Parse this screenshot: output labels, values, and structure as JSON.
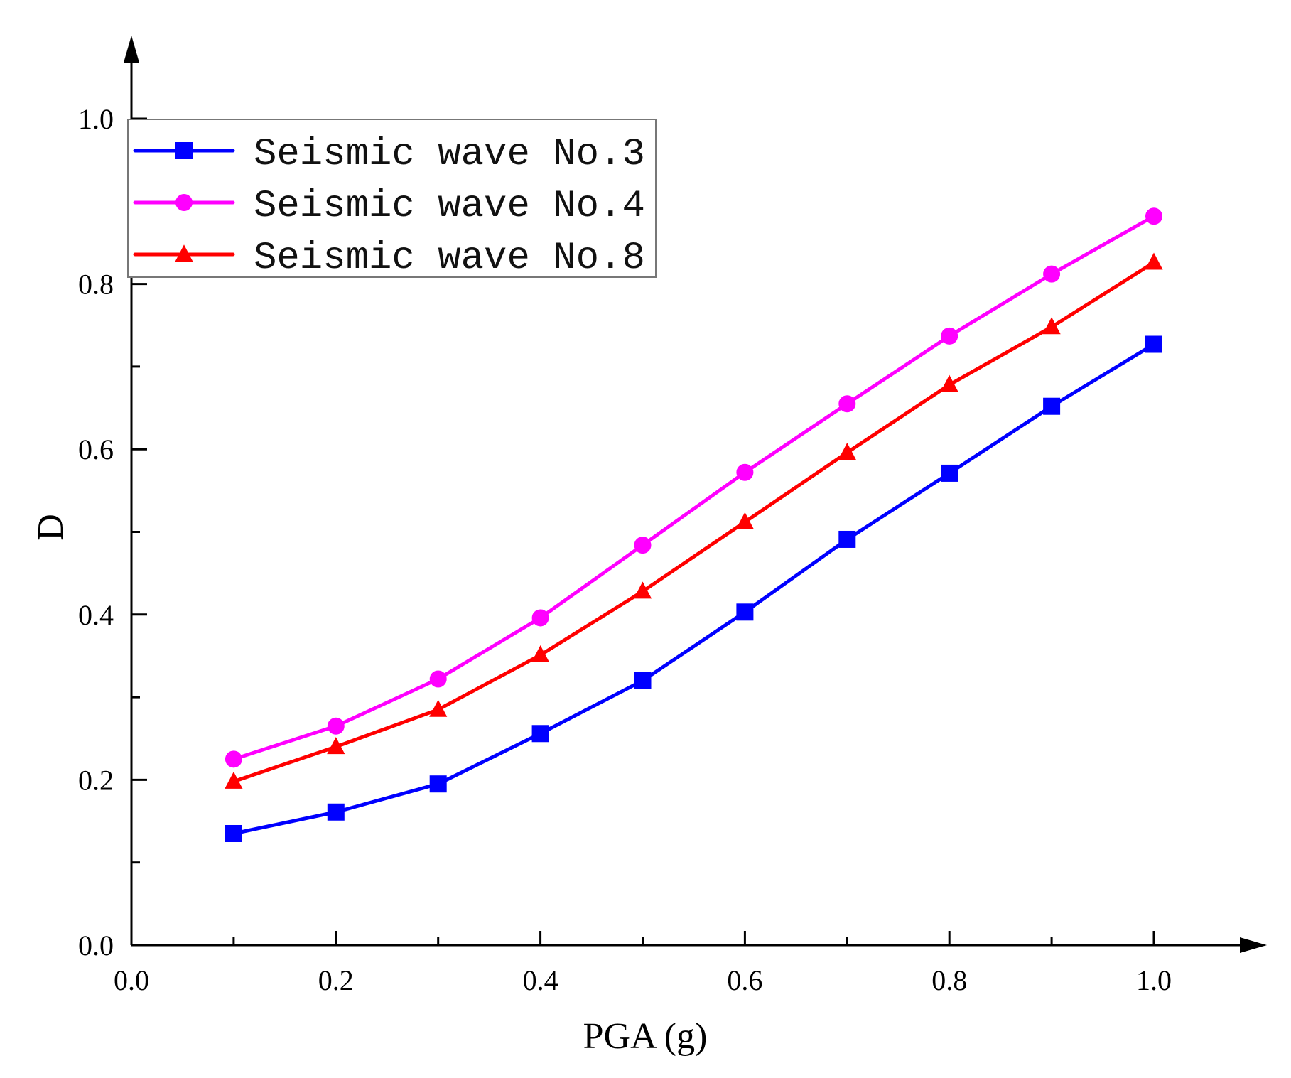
{
  "chart_data": {
    "type": "line",
    "title": "",
    "xlabel": "PGA (g)",
    "ylabel": "D",
    "xlim": [
      0.0,
      1.1
    ],
    "ylim": [
      0.0,
      1.1
    ],
    "x_ticks": [
      "0.0",
      "0.2",
      "0.4",
      "0.6",
      "0.8",
      "1.0"
    ],
    "y_ticks": [
      "0.0",
      "0.2",
      "0.4",
      "0.6",
      "0.8",
      "1.0"
    ],
    "x_tick_values": [
      0.0,
      0.2,
      0.4,
      0.6,
      0.8,
      1.0
    ],
    "y_tick_values": [
      0.0,
      0.2,
      0.4,
      0.6,
      0.8,
      1.0
    ],
    "x_minor_ticks": [
      0.1,
      0.3,
      0.5,
      0.7,
      0.9
    ],
    "y_minor_ticks": [
      0.1,
      0.3,
      0.5,
      0.7,
      0.9
    ],
    "grid": false,
    "legend_position": "top-left",
    "x": [
      0.1,
      0.2,
      0.3,
      0.4,
      0.5,
      0.6,
      0.7,
      0.8,
      0.9,
      1.0
    ],
    "series": [
      {
        "name": "Seismic wave No.3",
        "color": "#0000ff",
        "marker": "square",
        "values": [
          0.135,
          0.161,
          0.195,
          0.256,
          0.32,
          0.403,
          0.491,
          0.571,
          0.652,
          0.727
        ]
      },
      {
        "name": "Seismic wave No.4",
        "color": "#ff00ff",
        "marker": "circle",
        "values": [
          0.225,
          0.265,
          0.322,
          0.396,
          0.484,
          0.572,
          0.655,
          0.737,
          0.812,
          0.882
        ]
      },
      {
        "name": "Seismic wave No.8",
        "color": "#ff0000",
        "marker": "triangle",
        "values": [
          0.198,
          0.24,
          0.285,
          0.351,
          0.428,
          0.512,
          0.596,
          0.678,
          0.748,
          0.826
        ]
      }
    ]
  }
}
